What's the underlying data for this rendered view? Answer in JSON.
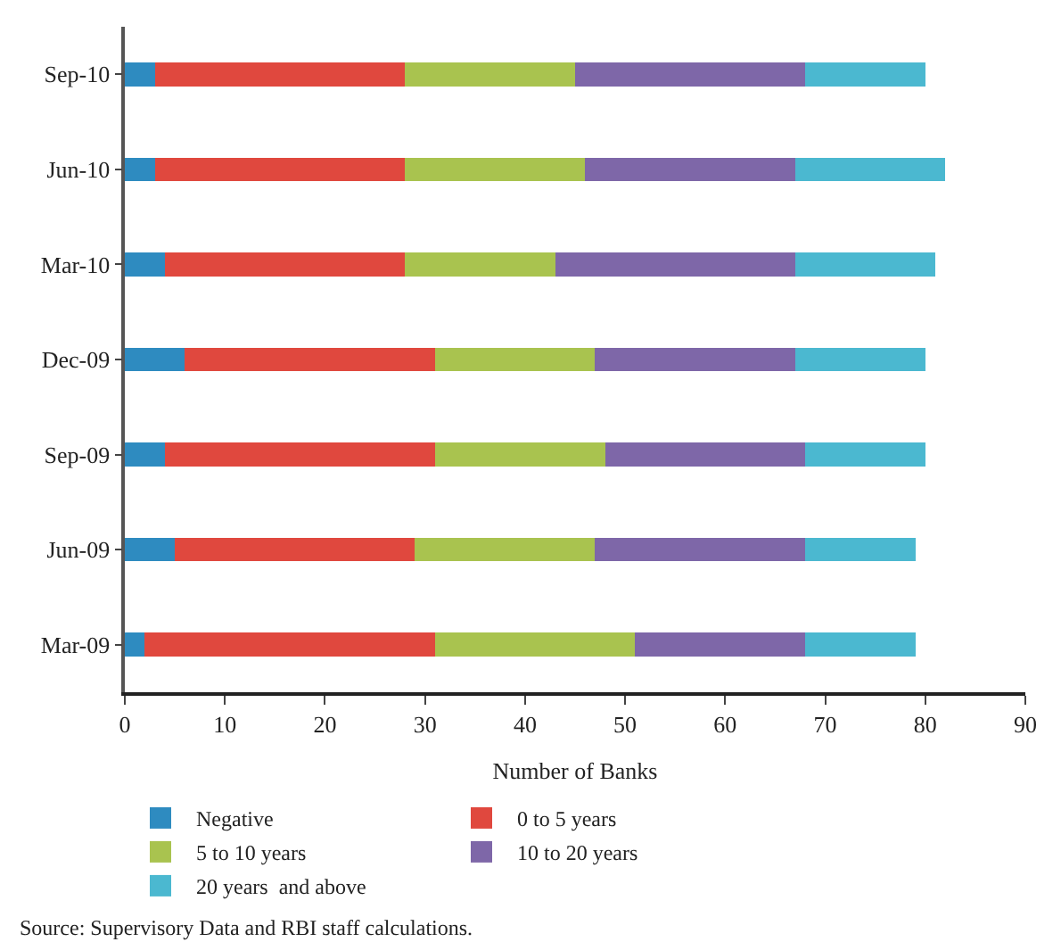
{
  "chart_data": {
    "type": "bar",
    "orientation": "horizontal",
    "stacked": true,
    "categories": [
      "Sep-10",
      "Jun-10",
      "Mar-10",
      "Dec-09",
      "Sep-09",
      "Jun-09",
      "Mar-09"
    ],
    "series": [
      {
        "name": "Negative",
        "color": "#2e8bc0",
        "values": [
          3,
          3,
          4,
          6,
          4,
          5,
          2
        ]
      },
      {
        "name": "0 to 5 years",
        "color": "#e0483e",
        "values": [
          25,
          25,
          24,
          25,
          27,
          24,
          29
        ]
      },
      {
        "name": "5 to 10 years",
        "color": "#a9c34f",
        "values": [
          17,
          18,
          15,
          16,
          17,
          18,
          20
        ]
      },
      {
        "name": "10 to 20 years",
        "color": "#7e67a8",
        "values": [
          23,
          21,
          24,
          20,
          20,
          21,
          17
        ]
      },
      {
        "name": "20 years  and above",
        "color": "#4bb8d0",
        "values": [
          12,
          15,
          14,
          13,
          12,
          11,
          11
        ]
      }
    ],
    "xlabel": "Number of Banks",
    "xlim": [
      0,
      90
    ],
    "xticks": [
      0,
      10,
      20,
      30,
      40,
      50,
      60,
      70,
      80,
      90
    ],
    "legend": "bottom",
    "annotations": [
      "Source: Supervisory Data and RBI staff calculations."
    ]
  }
}
